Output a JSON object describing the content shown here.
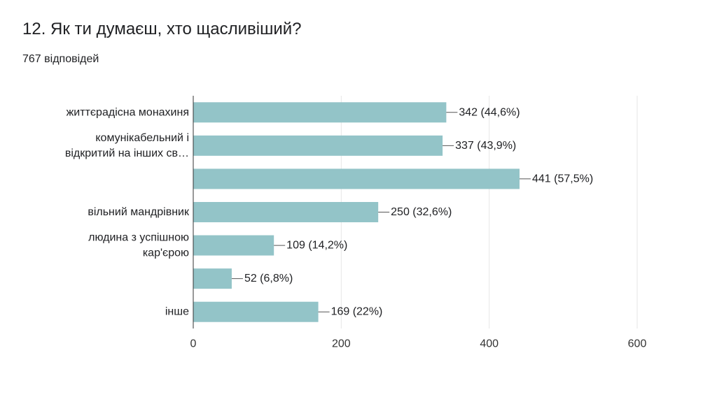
{
  "question": {
    "title": "12. Як ти думаєш, хто щасливіший?",
    "responses": "767 відповідей"
  },
  "colors": {
    "bar": "#93c4c8",
    "grid": "#e6e6e6",
    "axis": "#333333",
    "leader": "#555555"
  },
  "chart_data": {
    "type": "bar",
    "orientation": "horizontal",
    "categories": [
      [
        "життєрадісна монахиня"
      ],
      [
        "комунікабельний і",
        "відкритий на інших св…"
      ],
      [
        ""
      ],
      [
        "вільний мандрівник"
      ],
      [
        "людина з успішною",
        "кар'єрою"
      ],
      [
        ""
      ],
      [
        "інше"
      ]
    ],
    "values": [
      342,
      337,
      441,
      250,
      109,
      52,
      169
    ],
    "data_labels": [
      "342 (44,6%)",
      "337 (43,9%)",
      "441 (57,5%)",
      "250 (32,6%)",
      "109 (14,2%)",
      "52 (6,8%)",
      "169 (22%)"
    ],
    "xlim": [
      0,
      600
    ],
    "xticks": [
      0,
      200,
      400,
      600
    ],
    "xtick_labels": [
      "0",
      "200",
      "400",
      "600"
    ],
    "grid": true
  }
}
